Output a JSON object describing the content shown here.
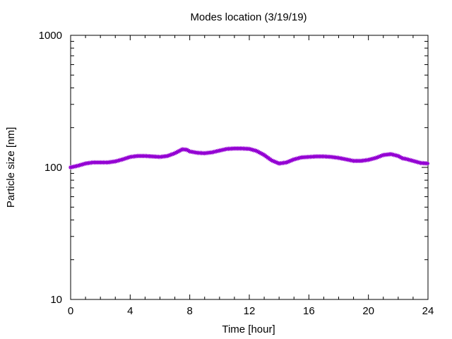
{
  "chart_data": {
    "type": "line",
    "title": "Modes location (3/19/19)",
    "xlabel": "Time [hour]",
    "ylabel": "Particle size [nm]",
    "xlim": [
      0,
      24
    ],
    "ylim": [
      10,
      1000
    ],
    "yscale": "log",
    "grid": false,
    "x_ticks": [
      "0",
      "4",
      "8",
      "12",
      "16",
      "20",
      "24"
    ],
    "y_ticks": [
      "10",
      "100",
      "1000"
    ],
    "series": [
      {
        "color": "#9400d3",
        "marker": "star",
        "points": [
          [
            0.0,
            100
          ],
          [
            0.5,
            103
          ],
          [
            1.0,
            107
          ],
          [
            1.5,
            109
          ],
          [
            2.0,
            109
          ],
          [
            2.5,
            109
          ],
          [
            3.0,
            111
          ],
          [
            3.5,
            115
          ],
          [
            4.0,
            120
          ],
          [
            4.5,
            122
          ],
          [
            5.0,
            122
          ],
          [
            5.5,
            121
          ],
          [
            6.0,
            120
          ],
          [
            6.5,
            122
          ],
          [
            7.0,
            128
          ],
          [
            7.5,
            137
          ],
          [
            7.8,
            136
          ],
          [
            8.0,
            132
          ],
          [
            8.5,
            129
          ],
          [
            9.0,
            128
          ],
          [
            9.5,
            130
          ],
          [
            10.0,
            134
          ],
          [
            10.5,
            138
          ],
          [
            11.0,
            139
          ],
          [
            11.5,
            139
          ],
          [
            12.0,
            138
          ],
          [
            12.5,
            133
          ],
          [
            13.0,
            124
          ],
          [
            13.5,
            113
          ],
          [
            14.0,
            107
          ],
          [
            14.5,
            109
          ],
          [
            15.0,
            115
          ],
          [
            15.5,
            119
          ],
          [
            16.0,
            120
          ],
          [
            16.5,
            121
          ],
          [
            17.0,
            121
          ],
          [
            17.5,
            120
          ],
          [
            18.0,
            118
          ],
          [
            18.5,
            115
          ],
          [
            19.0,
            112
          ],
          [
            19.5,
            112
          ],
          [
            20.0,
            114
          ],
          [
            20.5,
            118
          ],
          [
            21.0,
            124
          ],
          [
            21.5,
            126
          ],
          [
            22.0,
            122
          ],
          [
            22.3,
            117
          ],
          [
            22.5,
            116
          ],
          [
            23.0,
            112
          ],
          [
            23.5,
            108
          ],
          [
            24.0,
            107
          ]
        ]
      }
    ]
  }
}
